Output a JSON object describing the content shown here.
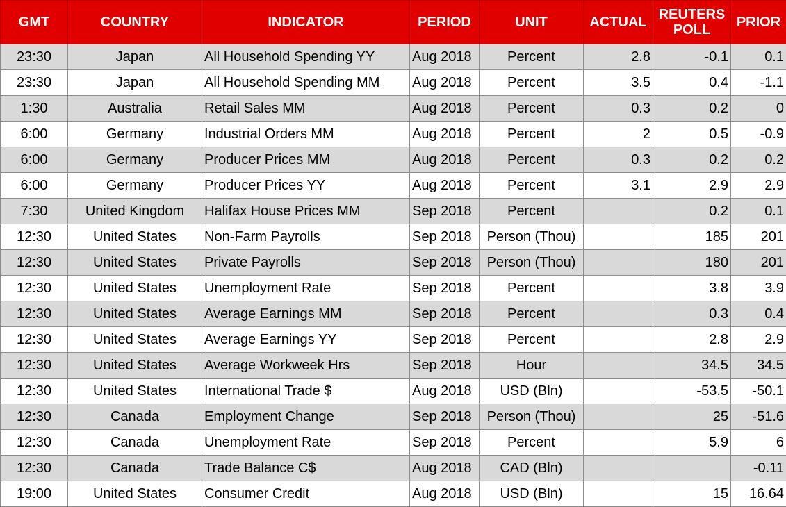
{
  "table": {
    "header": [
      "GMT",
      "COUNTRY",
      "INDICATOR",
      "PERIOD",
      "UNIT",
      "ACTUAL",
      "REUTERS POLL",
      "PRIOR"
    ],
    "rows": [
      [
        "23:30",
        "Japan",
        "All Household Spending YY",
        "Aug 2018",
        "Percent",
        "2.8",
        "-0.1",
        "0.1"
      ],
      [
        "23:30",
        "Japan",
        "All Household Spending MM",
        "Aug 2018",
        "Percent",
        "3.5",
        "0.4",
        "-1.1"
      ],
      [
        "1:30",
        "Australia",
        "Retail Sales MM",
        "Aug 2018",
        "Percent",
        "0.3",
        "0.2",
        "0"
      ],
      [
        "6:00",
        "Germany",
        "Industrial Orders MM",
        "Aug 2018",
        "Percent",
        "2",
        "0.5",
        "-0.9"
      ],
      [
        "6:00",
        "Germany",
        "Producer Prices MM",
        "Aug 2018",
        "Percent",
        "0.3",
        "0.2",
        "0.2"
      ],
      [
        "6:00",
        "Germany",
        "Producer Prices YY",
        "Aug 2018",
        "Percent",
        "3.1",
        "2.9",
        "2.9"
      ],
      [
        "7:30",
        "United Kingdom",
        "Halifax House Prices MM",
        "Sep 2018",
        "Percent",
        null,
        "0.2",
        "0.1"
      ],
      [
        "12:30",
        "United States",
        "Non-Farm Payrolls",
        "Sep 2018",
        "Person (Thou)",
        null,
        "185",
        "201"
      ],
      [
        "12:30",
        "United States",
        "Private Payrolls",
        "Sep 2018",
        "Person (Thou)",
        null,
        "180",
        "201"
      ],
      [
        "12:30",
        "United States",
        "Unemployment Rate",
        "Sep 2018",
        "Percent",
        null,
        "3.8",
        "3.9"
      ],
      [
        "12:30",
        "United States",
        "Average Earnings MM",
        "Sep 2018",
        "Percent",
        null,
        "0.3",
        "0.4"
      ],
      [
        "12:30",
        "United States",
        "Average Earnings YY",
        "Sep 2018",
        "Percent",
        null,
        "2.8",
        "2.9"
      ],
      [
        "12:30",
        "United States",
        "Average Workweek Hrs",
        "Sep 2018",
        "Hour",
        null,
        "34.5",
        "34.5"
      ],
      [
        "12:30",
        "United States",
        "International Trade $",
        "Aug 2018",
        "USD (Bln)",
        null,
        "-53.5",
        "-50.1"
      ],
      [
        "12:30",
        "Canada",
        "Employment Change",
        "Sep 2018",
        "Person (Thou)",
        null,
        "25",
        "-51.6"
      ],
      [
        "12:30",
        "Canada",
        "Unemployment Rate",
        "Sep 2018",
        "Percent",
        null,
        "5.9",
        "6"
      ],
      [
        "12:30",
        "Canada",
        "Trade Balance C$",
        "Aug 2018",
        "CAD (Bln)",
        null,
        null,
        "-0.11"
      ],
      [
        "19:00",
        "United States",
        "Consumer Credit",
        "Aug 2018",
        "USD (Bln)",
        null,
        "15",
        "16.64"
      ]
    ]
  }
}
